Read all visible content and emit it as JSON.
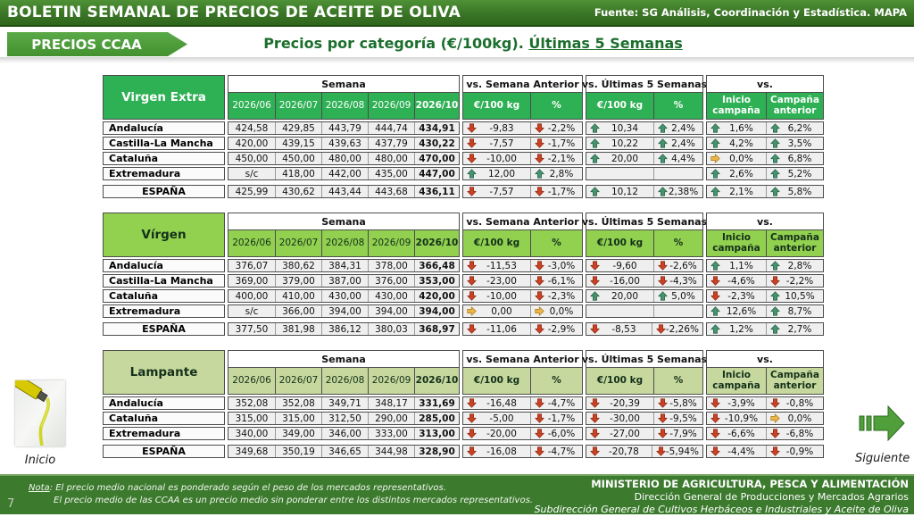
{
  "header": {
    "title": "BOLETIN SEMANAL DE PRECIOS DE ACEITE DE OLIVA",
    "source": "Fuente: SG Análisis, Coordinación y Estadística. MAPA"
  },
  "tab": {
    "label": "PRECIOS CCAA"
  },
  "page_title": {
    "prefix": "Precios por categoría (€/100kg). ",
    "underlined": "Últimas 5 Semanas"
  },
  "column_headers": {
    "semana": "Semana",
    "vs_semana_anterior": "vs. Semana Anterior",
    "vs_ultimas_5_semanas": "vs. Últimas 5 Semanas",
    "vs": "vs.",
    "eur_100kg": "€/100 kg",
    "pct": "%",
    "inicio_campana": "Inicio campaña",
    "campana_anterior": "Campaña anterior"
  },
  "weeks": [
    "2026/06",
    "2026/07",
    "2026/08",
    "2026/09",
    "2026/10"
  ],
  "arrow_colors": {
    "down": {
      "fill": "#cc4125",
      "stroke": "#8a2a12"
    },
    "up": {
      "fill": "#45946f",
      "stroke": "#2b614a"
    },
    "right": {
      "fill": "#eab648",
      "stroke": "#a87a1d"
    }
  },
  "tables": [
    {
      "category": "Virgen Extra",
      "accent_bg": "#2eb054",
      "accent_fg": "#ffffff",
      "rows": [
        {
          "region": "Andalucía",
          "weeks": [
            "424,58",
            "429,85",
            "443,79",
            "444,74",
            "434,91"
          ],
          "changes": [
            {
              "d": "down",
              "v": "-9,83"
            },
            {
              "d": "down",
              "v": "-2,2%"
            },
            {
              "d": "up",
              "v": "10,34"
            },
            {
              "d": "up",
              "v": "2,4%"
            },
            {
              "d": "up",
              "v": "1,6%"
            },
            {
              "d": "up",
              "v": "6,2%"
            }
          ]
        },
        {
          "region": "Castilla-La Mancha",
          "weeks": [
            "420,00",
            "439,15",
            "439,63",
            "437,79",
            "430,22"
          ],
          "changes": [
            {
              "d": "down",
              "v": "-7,57"
            },
            {
              "d": "down",
              "v": "-1,7%"
            },
            {
              "d": "up",
              "v": "10,22"
            },
            {
              "d": "up",
              "v": "2,4%"
            },
            {
              "d": "up",
              "v": "4,2%"
            },
            {
              "d": "up",
              "v": "3,5%"
            }
          ]
        },
        {
          "region": "Cataluña",
          "weeks": [
            "450,00",
            "450,00",
            "480,00",
            "480,00",
            "470,00"
          ],
          "changes": [
            {
              "d": "down",
              "v": "-10,00"
            },
            {
              "d": "down",
              "v": "-2,1%"
            },
            {
              "d": "up",
              "v": "20,00"
            },
            {
              "d": "up",
              "v": "4,4%"
            },
            {
              "d": "right",
              "v": "0,0%"
            },
            {
              "d": "up",
              "v": "6,8%"
            }
          ]
        },
        {
          "region": "Extremadura",
          "weeks": [
            "s/c",
            "418,00",
            "442,00",
            "435,00",
            "447,00"
          ],
          "changes": [
            {
              "d": "up",
              "v": "12,00"
            },
            {
              "d": "up",
              "v": "2,8%"
            },
            null,
            null,
            {
              "d": "up",
              "v": "2,6%"
            },
            {
              "d": "up",
              "v": "5,2%"
            }
          ]
        }
      ],
      "total": {
        "region": "ESPAÑA",
        "weeks": [
          "425,99",
          "430,62",
          "443,44",
          "443,68",
          "436,11"
        ],
        "changes": [
          {
            "d": "down",
            "v": "-7,57"
          },
          {
            "d": "down",
            "v": "-1,7%"
          },
          {
            "d": "up",
            "v": "10,12"
          },
          {
            "d": "up",
            "v": "2,38%"
          },
          {
            "d": "up",
            "v": "2,1%"
          },
          {
            "d": "up",
            "v": "5,8%"
          }
        ]
      }
    },
    {
      "category": "Vírgen",
      "accent_bg": "#92d050",
      "accent_fg": "#14301a",
      "rows": [
        {
          "region": "Andalucía",
          "weeks": [
            "376,07",
            "380,62",
            "384,31",
            "378,00",
            "366,48"
          ],
          "changes": [
            {
              "d": "down",
              "v": "-11,53"
            },
            {
              "d": "down",
              "v": "-3,0%"
            },
            {
              "d": "down",
              "v": "-9,60"
            },
            {
              "d": "down",
              "v": "-2,6%"
            },
            {
              "d": "up",
              "v": "1,1%"
            },
            {
              "d": "up",
              "v": "2,8%"
            }
          ]
        },
        {
          "region": "Castilla-La Mancha",
          "weeks": [
            "369,00",
            "379,00",
            "387,00",
            "376,00",
            "353,00"
          ],
          "changes": [
            {
              "d": "down",
              "v": "-23,00"
            },
            {
              "d": "down",
              "v": "-6,1%"
            },
            {
              "d": "down",
              "v": "-16,00"
            },
            {
              "d": "down",
              "v": "-4,3%"
            },
            {
              "d": "down",
              "v": "-4,6%"
            },
            {
              "d": "down",
              "v": "-2,2%"
            }
          ]
        },
        {
          "region": "Cataluña",
          "weeks": [
            "400,00",
            "410,00",
            "430,00",
            "430,00",
            "420,00"
          ],
          "changes": [
            {
              "d": "down",
              "v": "-10,00"
            },
            {
              "d": "down",
              "v": "-2,3%"
            },
            {
              "d": "up",
              "v": "20,00"
            },
            {
              "d": "up",
              "v": "5,0%"
            },
            {
              "d": "down",
              "v": "-2,3%"
            },
            {
              "d": "up",
              "v": "10,5%"
            }
          ]
        },
        {
          "region": "Extremadura",
          "weeks": [
            "s/c",
            "366,00",
            "394,00",
            "394,00",
            "394,00"
          ],
          "changes": [
            {
              "d": "right",
              "v": "0,00"
            },
            {
              "d": "right",
              "v": "0,0%"
            },
            null,
            null,
            {
              "d": "up",
              "v": "12,6%"
            },
            {
              "d": "up",
              "v": "8,7%"
            }
          ]
        }
      ],
      "total": {
        "region": "ESPAÑA",
        "weeks": [
          "377,50",
          "381,98",
          "386,12",
          "380,03",
          "368,97"
        ],
        "changes": [
          {
            "d": "down",
            "v": "-11,06"
          },
          {
            "d": "down",
            "v": "-2,9%"
          },
          {
            "d": "down",
            "v": "-8,53"
          },
          {
            "d": "down",
            "v": "-2,26%"
          },
          {
            "d": "up",
            "v": "1,2%"
          },
          {
            "d": "up",
            "v": "2,7%"
          }
        ]
      }
    },
    {
      "category": "Lampante",
      "accent_bg": "#c6d89e",
      "accent_fg": "#14301a",
      "rows": [
        {
          "region": "Andalucía",
          "weeks": [
            "352,08",
            "352,08",
            "349,71",
            "348,17",
            "331,69"
          ],
          "changes": [
            {
              "d": "down",
              "v": "-16,48"
            },
            {
              "d": "down",
              "v": "-4,7%"
            },
            {
              "d": "down",
              "v": "-20,39"
            },
            {
              "d": "down",
              "v": "-5,8%"
            },
            {
              "d": "down",
              "v": "-3,9%"
            },
            {
              "d": "down",
              "v": "-0,8%"
            }
          ]
        },
        {
          "region": "Cataluña",
          "weeks": [
            "315,00",
            "315,00",
            "312,50",
            "290,00",
            "285,00"
          ],
          "changes": [
            {
              "d": "down",
              "v": "-5,00"
            },
            {
              "d": "down",
              "v": "-1,7%"
            },
            {
              "d": "down",
              "v": "-30,00"
            },
            {
              "d": "down",
              "v": "-9,5%"
            },
            {
              "d": "down",
              "v": "-10,9%"
            },
            {
              "d": "right",
              "v": "0,0%"
            }
          ]
        },
        {
          "region": "Extremadura",
          "weeks": [
            "340,00",
            "349,00",
            "346,00",
            "333,00",
            "313,00"
          ],
          "changes": [
            {
              "d": "down",
              "v": "-20,00"
            },
            {
              "d": "down",
              "v": "-6,0%"
            },
            {
              "d": "down",
              "v": "-27,00"
            },
            {
              "d": "down",
              "v": "-7,9%"
            },
            {
              "d": "down",
              "v": "-6,6%"
            },
            {
              "d": "down",
              "v": "-6,8%"
            }
          ]
        }
      ],
      "total": {
        "region": "ESPAÑA",
        "weeks": [
          "349,68",
          "350,19",
          "346,65",
          "344,98",
          "328,90"
        ],
        "changes": [
          {
            "d": "down",
            "v": "-16,08"
          },
          {
            "d": "down",
            "v": "-4,7%"
          },
          {
            "d": "down",
            "v": "-20,78"
          },
          {
            "d": "down",
            "v": "-5,94%"
          },
          {
            "d": "down",
            "v": "-4,4%"
          },
          {
            "d": "down",
            "v": "-0,9%"
          }
        ]
      }
    }
  ],
  "nav": {
    "inicio": {
      "label": "Inicio",
      "icon": "olive-oil-photo"
    },
    "siguiente": {
      "label": "Siguiente",
      "icon": "next-arrow-icon"
    }
  },
  "footer": {
    "page_number": "7",
    "nota_label": "Nota",
    "nota_line1": ": El precio medio nacional es ponderado según el peso de los mercados representativos.",
    "nota_line2": "El precio medio de las CCAA es un precio medio sin ponderar entre los distintos mercados representativos.",
    "ministry_line1": "MINISTERIO DE AGRICULTURA, PESCA Y ALIMENTACIÓN",
    "ministry_line2": "Dirección General de Producciones y Mercados Agrarios",
    "ministry_line3": "Subdirección General de Cultivos Herbáceos e Industriales y Aceite de Oliva"
  }
}
